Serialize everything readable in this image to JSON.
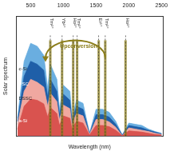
{
  "chart_data": {
    "type": "area",
    "x_label": "Wavelength (nm)",
    "y_label": "Solar spectrum",
    "x": [
      300,
      400,
      500,
      600,
      700,
      760,
      800,
      900,
      940,
      1000,
      1100,
      1130,
      1200,
      1300,
      1400,
      1500,
      1600,
      1700,
      1800,
      1900,
      2000,
      2100,
      2200,
      2300,
      2400,
      2500
    ],
    "series": [
      {
        "name": "c-Si",
        "color": "#6aaee0",
        "values": [
          0.3,
          1.25,
          1.55,
          1.5,
          1.35,
          0.8,
          1.2,
          0.95,
          0.45,
          0.85,
          0.75,
          0.3,
          0.6,
          0.55,
          0.05,
          0.45,
          0.45,
          0.4,
          0.25,
          0.02,
          0.22,
          0.2,
          0.18,
          0.12,
          0.08,
          0.05
        ]
      },
      {
        "name": "PSC",
        "color": "#1f5fa8",
        "values": [
          0.25,
          1.0,
          1.25,
          1.2,
          1.1,
          0.65,
          0.95,
          0.75,
          0.35,
          0.7,
          0.6,
          0.25,
          0.5,
          0.45,
          0.04,
          0.36,
          0.36,
          0.32,
          0.2,
          0.02,
          0.18,
          0.16,
          0.14,
          0.1,
          0.07,
          0.04
        ]
      },
      {
        "name": "DSSC",
        "color": "#f0a8a0",
        "values": [
          0.2,
          0.75,
          0.95,
          0.9,
          0.82,
          0.5,
          0.72,
          0.58,
          0.27,
          0.52,
          0.46,
          0.19,
          0.38,
          0.34,
          0.03,
          0.28,
          0.28,
          0.24,
          0.15,
          0.01,
          0.14,
          0.12,
          0.1,
          0.08,
          0.05,
          0.03
        ]
      },
      {
        "name": "a-Si",
        "color": "#d9534f",
        "values": [
          0.12,
          0.5,
          0.62,
          0.6,
          0.54,
          0.32,
          0.48,
          0.38,
          0.18,
          0.34,
          0.3,
          0.12,
          0.25,
          0.22,
          0.02,
          0.18,
          0.18,
          0.16,
          0.1,
          0.01,
          0.09,
          0.08,
          0.07,
          0.05,
          0.03,
          0.02
        ]
      }
    ],
    "xlim": [
      280,
      2520
    ],
    "xticks": [
      500,
      1000,
      1500,
      2000,
      2500
    ],
    "ylim": [
      0,
      2
    ],
    "tick_labels": "x",
    "grid": false,
    "annotations": [
      {
        "x": 800,
        "label": "Tm³⁺"
      },
      {
        "x": 980,
        "label": "Yb³⁺"
      },
      {
        "x": 1150,
        "label": "Ho³⁺"
      },
      {
        "x": 1210,
        "label": "Tm³⁺"
      },
      {
        "x": 1540,
        "label": "Er³⁺"
      },
      {
        "x": 1640,
        "label": "Tm³⁺"
      },
      {
        "x": 1950,
        "label": "Ho³⁺"
      }
    ],
    "arrow_label": "Upconversion"
  }
}
